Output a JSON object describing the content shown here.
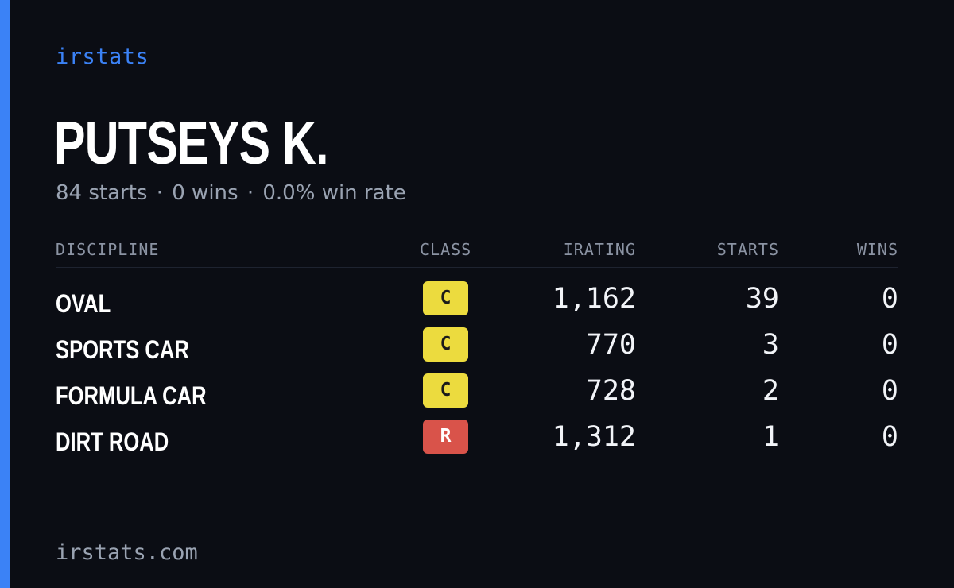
{
  "brand": "irstats",
  "driver": {
    "name": "PUTSEYS K."
  },
  "summary": {
    "starts": "84 starts",
    "wins": "0 wins",
    "win_rate": "0.0% win rate",
    "separator": "·"
  },
  "table": {
    "headers": {
      "discipline": "DISCIPLINE",
      "class": "CLASS",
      "irating": "IRATING",
      "starts": "STARTS",
      "wins": "WINS"
    },
    "rows": [
      {
        "discipline": "OVAL",
        "class": "C",
        "irating": "1,162",
        "starts": "39",
        "wins": "0"
      },
      {
        "discipline": "SPORTS CAR",
        "class": "C",
        "irating": "770",
        "starts": "3",
        "wins": "0"
      },
      {
        "discipline": "FORMULA CAR",
        "class": "C",
        "irating": "728",
        "starts": "2",
        "wins": "0"
      },
      {
        "discipline": "DIRT ROAD",
        "class": "R",
        "irating": "1,312",
        "starts": "1",
        "wins": "0"
      }
    ]
  },
  "footer": "irstats.com",
  "colors": {
    "background": "#0b0d14",
    "accent": "#3b82f6",
    "class_c": "#ecdb3e",
    "class_r": "#d9534a",
    "muted_text": "#9aa3b2"
  }
}
